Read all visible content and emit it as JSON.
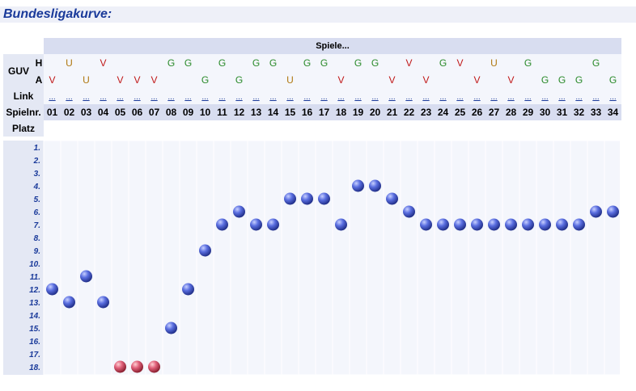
{
  "title": "Bundesligakurve:",
  "header": {
    "spiele": "Spiele...",
    "guv": "GUV",
    "h": "H",
    "a": "A",
    "link": "Link",
    "spielnr": "Spielnr.",
    "platz": "Platz"
  },
  "games": [
    {
      "nr": "01",
      "h": "",
      "a": "V"
    },
    {
      "nr": "02",
      "h": "U",
      "a": ""
    },
    {
      "nr": "03",
      "h": "",
      "a": "U"
    },
    {
      "nr": "04",
      "h": "V",
      "a": ""
    },
    {
      "nr": "05",
      "h": "",
      "a": "V"
    },
    {
      "nr": "06",
      "h": "",
      "a": "V"
    },
    {
      "nr": "07",
      "h": "",
      "a": "V"
    },
    {
      "nr": "08",
      "h": "G",
      "a": ""
    },
    {
      "nr": "09",
      "h": "G",
      "a": ""
    },
    {
      "nr": "10",
      "h": "",
      "a": "G"
    },
    {
      "nr": "11",
      "h": "G",
      "a": ""
    },
    {
      "nr": "12",
      "h": "",
      "a": "G"
    },
    {
      "nr": "13",
      "h": "G",
      "a": ""
    },
    {
      "nr": "14",
      "h": "G",
      "a": ""
    },
    {
      "nr": "15",
      "h": "",
      "a": "U"
    },
    {
      "nr": "16",
      "h": "G",
      "a": ""
    },
    {
      "nr": "17",
      "h": "G",
      "a": ""
    },
    {
      "nr": "18",
      "h": "",
      "a": "V"
    },
    {
      "nr": "19",
      "h": "G",
      "a": ""
    },
    {
      "nr": "20",
      "h": "G",
      "a": ""
    },
    {
      "nr": "21",
      "h": "",
      "a": "V"
    },
    {
      "nr": "22",
      "h": "V",
      "a": ""
    },
    {
      "nr": "23",
      "h": "",
      "a": "V"
    },
    {
      "nr": "24",
      "h": "G",
      "a": ""
    },
    {
      "nr": "25",
      "h": "V",
      "a": ""
    },
    {
      "nr": "26",
      "h": "",
      "a": "V"
    },
    {
      "nr": "27",
      "h": "U",
      "a": ""
    },
    {
      "nr": "28",
      "h": "",
      "a": "V"
    },
    {
      "nr": "29",
      "h": "G",
      "a": ""
    },
    {
      "nr": "30",
      "h": "",
      "a": "G"
    },
    {
      "nr": "31",
      "h": "",
      "a": "G"
    },
    {
      "nr": "32",
      "h": "",
      "a": "G"
    },
    {
      "nr": "33",
      "h": "G",
      "a": ""
    },
    {
      "nr": "34",
      "h": "",
      "a": "G"
    }
  ],
  "link_text": "...",
  "colors": {
    "blue_dot": "#4a5ed8",
    "red_dot": "#d84a5a",
    "G": "#2a8a2a",
    "U": "#b07810",
    "V": "#c01818",
    "label": "#1a3a9a"
  },
  "chart_data": {
    "type": "scatter",
    "y_labels": [
      "1.",
      "2.",
      "3.",
      "4.",
      "5.",
      "6.",
      "7.",
      "8.",
      "9.",
      "10.",
      "11.",
      "12.",
      "13.",
      "14.",
      "15.",
      "16.",
      "17.",
      "18."
    ],
    "ylim": [
      1,
      18
    ],
    "x": [
      "01",
      "02",
      "03",
      "04",
      "05",
      "06",
      "07",
      "08",
      "09",
      "10",
      "11",
      "12",
      "13",
      "14",
      "15",
      "16",
      "17",
      "18",
      "19",
      "20",
      "21",
      "22",
      "23",
      "24",
      "25",
      "26",
      "27",
      "28",
      "29",
      "30",
      "31",
      "32",
      "33",
      "34"
    ],
    "values": [
      12,
      13,
      11,
      13,
      18,
      18,
      18,
      15,
      12,
      9,
      7,
      6,
      7,
      7,
      5,
      5,
      5,
      7,
      4,
      4,
      5,
      6,
      7,
      7,
      7,
      7,
      7,
      7,
      7,
      7,
      7,
      7,
      6,
      6
    ],
    "relegation_from": 18
  }
}
